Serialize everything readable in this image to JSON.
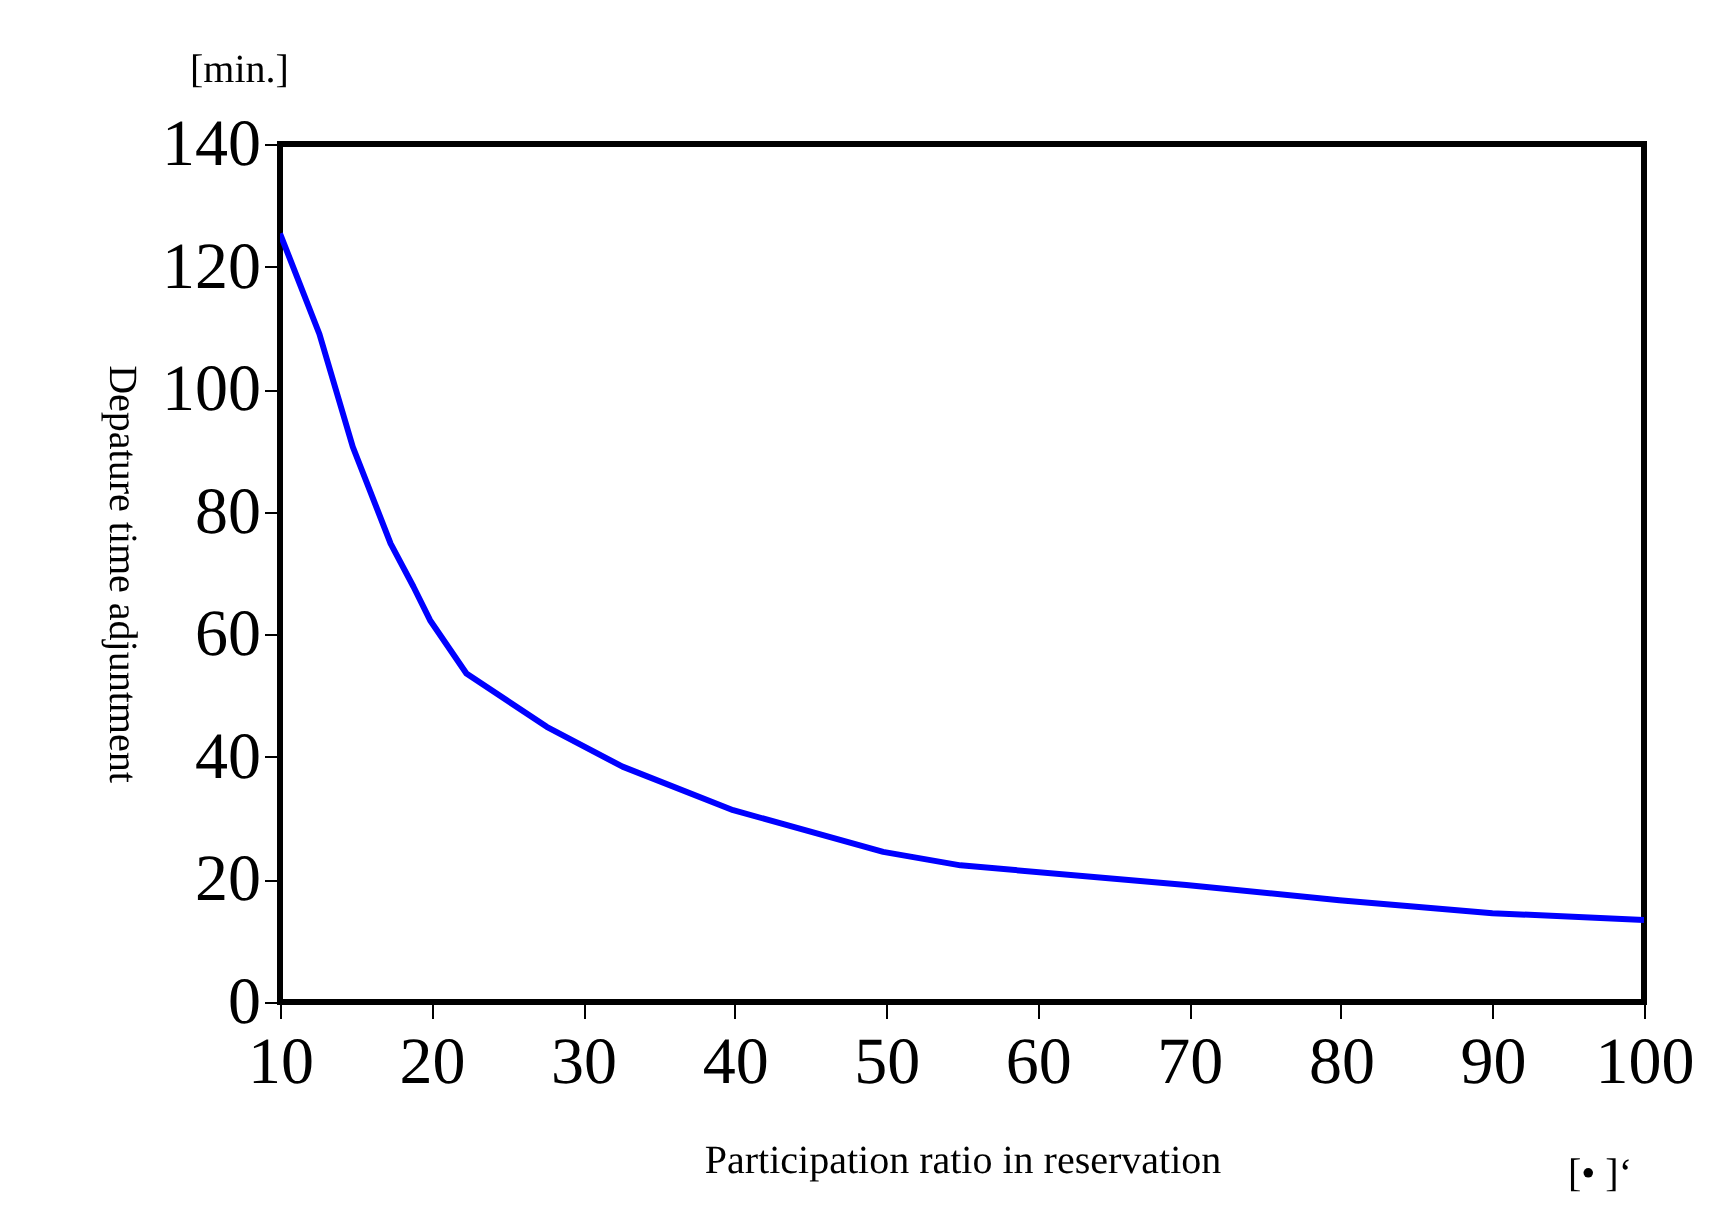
{
  "chart_data": {
    "type": "line",
    "xlabel": "Participation ratio in reservation",
    "ylabel": "Depature time adjuntment",
    "annotations": [
      "[min.]",
      "[• ]‘"
    ],
    "x": [
      10,
      12.6,
      14.8,
      17.3,
      18.8,
      19.9,
      22.3,
      27.6,
      32.6,
      39.9,
      49.8,
      54.9,
      69.8,
      79.9,
      90,
      100
    ],
    "series": [
      {
        "color": "#0000ff",
        "values": [
          125.4,
          109,
          90.6,
          74.8,
          67.8,
          62.3,
          53.6,
          44.9,
          38.4,
          31.3,
          24.5,
          22.3,
          19.1,
          16.6,
          14.5,
          13.4
        ]
      }
    ],
    "xlim": [
      10,
      100
    ],
    "xticks": [
      10,
      20,
      30,
      40,
      50,
      60,
      70,
      80,
      90,
      100
    ],
    "ylim": [
      0,
      140
    ],
    "yticks": [
      0,
      20,
      40,
      60,
      80,
      100,
      120,
      140
    ],
    "grid": false,
    "marker": "none",
    "line_style": "solid"
  }
}
